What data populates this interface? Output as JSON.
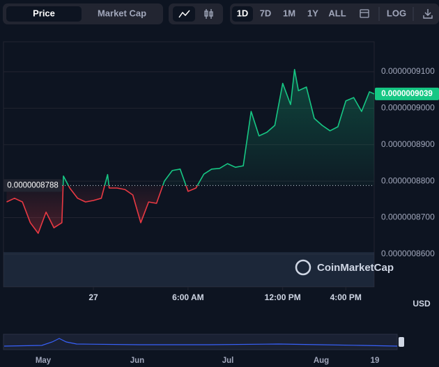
{
  "toolbar": {
    "tabs": [
      "Price",
      "Market Cap"
    ],
    "ranges": [
      "1D",
      "7D",
      "1M",
      "1Y",
      "ALL"
    ],
    "log": "LOG"
  },
  "chart_data": {
    "type": "line",
    "x": [
      -5.5,
      -5,
      -4.5,
      -4,
      -3.5,
      -3,
      -2.5,
      -2,
      -1.9,
      -1.5,
      -1,
      -0.5,
      0,
      0.5,
      0.9,
      1,
      1.5,
      2,
      2.5,
      3,
      3.5,
      4,
      4.5,
      5,
      5.5,
      6,
      6.5,
      7,
      7.5,
      8,
      8.5,
      9,
      9.5,
      10,
      10.5,
      11,
      11.5,
      12,
      12.5,
      12.75,
      13,
      13.5,
      14,
      14.5,
      15,
      15.5,
      16,
      16.5,
      17,
      17.5,
      17.8
    ],
    "values": [
      8.743e-07,
      8.753e-07,
      8.743e-07,
      8.686e-07,
      8.657e-07,
      8.715e-07,
      8.672e-07,
      8.686e-07,
      8.814e-07,
      8.781e-07,
      8.753e-07,
      8.743e-07,
      8.747e-07,
      8.753e-07,
      8.818e-07,
      8.781e-07,
      8.781e-07,
      8.777e-07,
      8.762e-07,
      8.686e-07,
      8.743e-07,
      8.739e-07,
      8.8e-07,
      8.829e-07,
      8.833e-07,
      8.772e-07,
      8.781e-07,
      8.819e-07,
      8.833e-07,
      8.835e-07,
      8.848e-07,
      8.838e-07,
      8.842e-07,
      8.991e-07,
      8.924e-07,
      8.934e-07,
      8.953e-07,
      9.068e-07,
      9.01e-07,
      9.106e-07,
      9.048e-07,
      9.058e-07,
      8.972e-07,
      8.953e-07,
      8.938e-07,
      8.949e-07,
      9.02e-07,
      9.029e-07,
      8.991e-07,
      9.045e-07,
      9.039e-07
    ],
    "colors": {
      "up": "#16c784",
      "down": "#ea3943"
    },
    "xlim": [
      -5.7,
      17.8
    ],
    "xticks": [
      {
        "value": 0,
        "label": "27"
      },
      {
        "value": 6,
        "label": "6:00 AM"
      },
      {
        "value": 12,
        "label": "12:00 PM"
      },
      {
        "value": 16,
        "label": "4:00 PM"
      }
    ],
    "ylim": [
      8.51e-07,
      9.182e-07
    ],
    "yticks": [
      {
        "value": 8.6e-07,
        "label": "0.0000008600"
      },
      {
        "value": 8.7e-07,
        "label": "0.0000008700"
      },
      {
        "value": 8.8e-07,
        "label": "0.0000008800"
      },
      {
        "value": 8.9e-07,
        "label": "0.0000008900"
      },
      {
        "value": 9e-07,
        "label": "0.0000009000"
      },
      {
        "value": 9.1e-07,
        "label": "0.0000009100"
      }
    ],
    "grid": true,
    "reference": {
      "value": 8.788e-07,
      "label": "0.0000008788"
    },
    "current": {
      "value": 9.039e-07,
      "label": "0.0000009039"
    },
    "unit_label": "USD",
    "watermark": "CoinMarketCap",
    "navigator_labels": [
      "May",
      "Jun",
      "Jul",
      "Aug",
      "19"
    ]
  }
}
